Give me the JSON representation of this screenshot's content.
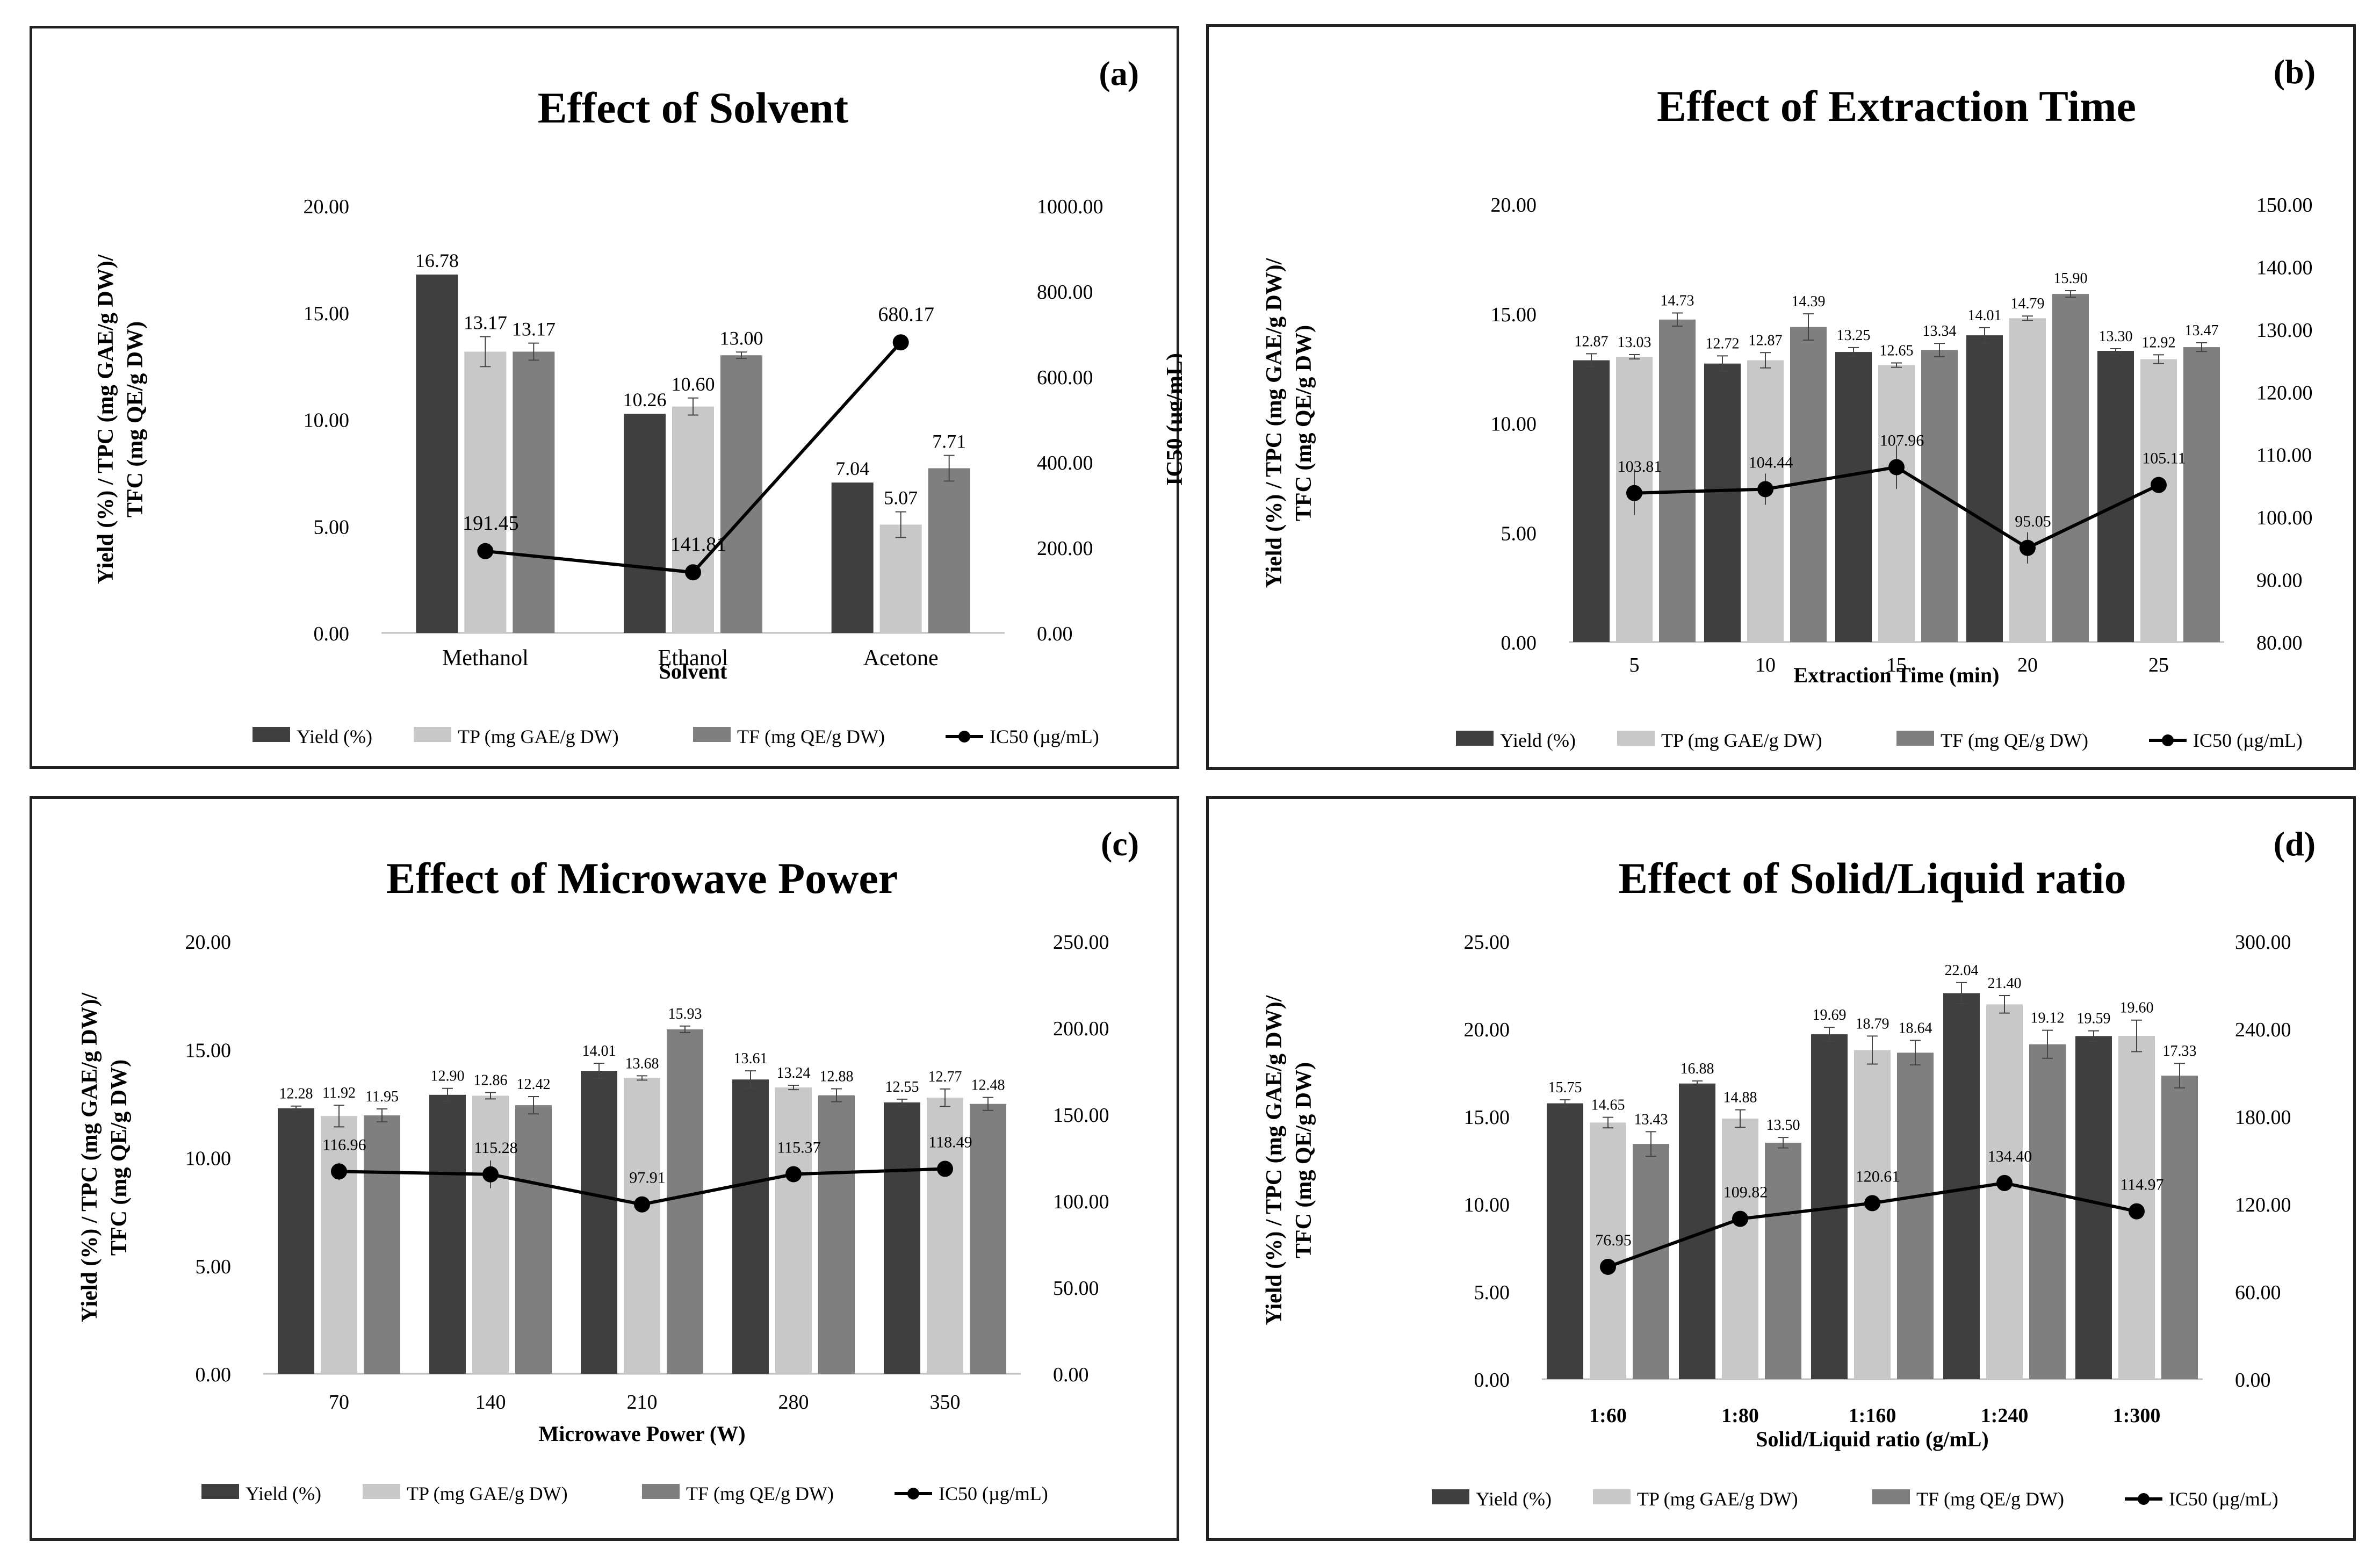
{
  "colors": {
    "yield": "#3f3f3f",
    "tp": "#c8c8c8",
    "tf": "#7f7f7f",
    "line": "#000000",
    "axis": "#bfbfbf"
  },
  "legend": {
    "yield": "Yield (%)",
    "tp": "TP (mg GAE/g DW)",
    "tf": "TF (mg QE/g DW)",
    "ic50": "IC50 (µg/mL)"
  },
  "y_label_left": [
    "Yield (%) / TPC (mg GAE/g DW)/",
    "TFC (mg QE/g DW)"
  ],
  "y_label_right": "IC50 (µg/mL)",
  "chart_data": [
    {
      "panel": "(a)",
      "type": "bar",
      "title": "Effect of Solvent",
      "xlabel": "Solvent",
      "categories": [
        "Methanol",
        "Ethanol",
        "Acetone"
      ],
      "ylim": [
        0,
        20
      ],
      "yticks": [
        "0.00",
        "5.00",
        "10.00",
        "15.00",
        "20.00"
      ],
      "y2lim": [
        0,
        1000
      ],
      "y2ticks": [
        "0.00",
        "200.00",
        "400.00",
        "600.00",
        "800.00",
        "1000.00"
      ],
      "series": [
        {
          "name": "Yield (%)",
          "values": [
            16.78,
            10.26,
            7.04
          ],
          "labels": [
            "16.78",
            "10.26",
            "7.04"
          ],
          "err": [
            0,
            0,
            0
          ]
        },
        {
          "name": "TP (mg GAE/g DW)",
          "values": [
            13.17,
            10.6,
            5.07
          ],
          "labels": [
            "13.17",
            "10.60",
            "5.07"
          ],
          "err": [
            0.7,
            0.4,
            0.6
          ]
        },
        {
          "name": "TF (mg QE/g DW)",
          "values": [
            13.17,
            13.0,
            7.71
          ],
          "labels": [
            "13.17",
            "13.00",
            "7.71"
          ],
          "err": [
            0.4,
            0.15,
            0.6
          ]
        }
      ],
      "line": {
        "name": "IC50 (µg/mL)",
        "values": [
          191.45,
          141.81,
          680.17
        ],
        "labels": [
          "191.45",
          "141.81",
          "680.17"
        ],
        "err": [
          0,
          0,
          0
        ]
      }
    },
    {
      "panel": "(b)",
      "type": "bar",
      "title": "Effect of Extraction Time",
      "xlabel": "Extraction Time (min)",
      "categories": [
        "5",
        "10",
        "15",
        "20",
        "25"
      ],
      "ylim": [
        0,
        20
      ],
      "yticks": [
        "0.00",
        "5.00",
        "10.00",
        "15.00",
        "20.00"
      ],
      "y2lim": [
        80,
        150
      ],
      "y2ticks": [
        "80.00",
        "90.00",
        "100.00",
        "110.00",
        "120.00",
        "130.00",
        "140.00",
        "150.00"
      ],
      "series": [
        {
          "name": "Yield (%)",
          "values": [
            12.87,
            12.72,
            13.25,
            14.01,
            13.3
          ],
          "labels": [
            "12.87",
            "12.72",
            "13.25",
            "14.01",
            "13.30"
          ],
          "err": [
            0.3,
            0.35,
            0.2,
            0.35,
            0.1
          ]
        },
        {
          "name": "TP (mg GAE/g DW)",
          "values": [
            13.03,
            12.87,
            12.65,
            14.79,
            12.92
          ],
          "labels": [
            "13.03",
            "12.87",
            "12.65",
            "14.79",
            "12.92"
          ],
          "err": [
            0.1,
            0.35,
            0.1,
            0.1,
            0.2
          ]
        },
        {
          "name": "TF (mg QE/g DW)",
          "values": [
            14.73,
            14.39,
            13.34,
            15.9,
            13.47
          ],
          "labels": [
            "14.73",
            "14.39",
            "13.34",
            "15.90",
            "13.47"
          ],
          "err": [
            0.3,
            0.6,
            0.3,
            0.15,
            0.2
          ]
        }
      ],
      "line": {
        "name": "IC50 (µg/mL)",
        "values": [
          103.81,
          104.44,
          107.96,
          95.05,
          105.11
        ],
        "labels": [
          "103.81",
          "104.44",
          "107.96",
          "95.05",
          "105.11"
        ],
        "err": [
          3.5,
          2.5,
          3.5,
          2.5,
          1.0
        ]
      }
    },
    {
      "panel": "(c)",
      "type": "bar",
      "title": "Effect of Microwave Power",
      "xlabel": "Microwave Power (W)",
      "categories": [
        "70",
        "140",
        "210",
        "280",
        "350"
      ],
      "ylim": [
        0,
        20
      ],
      "yticks": [
        "0.00",
        "5.00",
        "10.00",
        "15.00",
        "20.00"
      ],
      "y2lim": [
        0,
        250
      ],
      "y2ticks": [
        "0.00",
        "50.00",
        "100.00",
        "150.00",
        "200.00",
        "250.00"
      ],
      "series": [
        {
          "name": "Yield (%)",
          "values": [
            12.28,
            12.9,
            14.01,
            13.61,
            12.55
          ],
          "labels": [
            "12.28",
            "12.90",
            "14.01",
            "13.61",
            "12.55"
          ],
          "err": [
            0.1,
            0.3,
            0.35,
            0.4,
            0.15
          ]
        },
        {
          "name": "TP (mg GAE/g DW)",
          "values": [
            11.92,
            12.86,
            13.68,
            13.24,
            12.77
          ],
          "labels": [
            "11.92",
            "12.86",
            "13.68",
            "13.24",
            "12.77"
          ],
          "err": [
            0.5,
            0.15,
            0.1,
            0.1,
            0.4
          ]
        },
        {
          "name": "TF (mg QE/g DW)",
          "values": [
            11.95,
            12.42,
            15.93,
            12.88,
            12.48
          ],
          "labels": [
            "11.95",
            "12.42",
            "15.93",
            "12.88",
            "12.48"
          ],
          "err": [
            0.3,
            0.4,
            0.15,
            0.3,
            0.3
          ]
        }
      ],
      "line": {
        "name": "IC50 (µg/mL)",
        "values": [
          116.96,
          115.28,
          97.91,
          115.37,
          118.49
        ],
        "labels": [
          "116.96",
          "115.28",
          "97.91",
          "115.37",
          "118.49"
        ],
        "err": [
          5,
          8,
          3,
          3,
          2
        ]
      }
    },
    {
      "panel": "(d)",
      "type": "bar",
      "title": "Effect of Solid/Liquid ratio",
      "xlabel": "Solid/Liquid ratio (g/mL)",
      "categories": [
        "1:60",
        "1:80",
        "1:160",
        "1:240",
        "1:300"
      ],
      "ylim": [
        0,
        25
      ],
      "yticks": [
        "0.00",
        "5.00",
        "10.00",
        "15.00",
        "20.00",
        "25.00"
      ],
      "y2lim": [
        0,
        300
      ],
      "y2ticks": [
        "0.00",
        "60.00",
        "120.00",
        "180.00",
        "240.00",
        "300.00"
      ],
      "series": [
        {
          "name": "Yield (%)",
          "values": [
            15.75,
            16.88,
            19.69,
            22.04,
            19.59
          ],
          "labels": [
            "15.75",
            "16.88",
            "19.69",
            "22.04",
            "19.59"
          ],
          "err": [
            0.2,
            0.15,
            0.4,
            0.6,
            0.3
          ]
        },
        {
          "name": "TP (mg GAE/g DW)",
          "values": [
            14.65,
            14.88,
            18.79,
            21.4,
            19.6
          ],
          "labels": [
            "14.65",
            "14.88",
            "18.79",
            "21.40",
            "19.60"
          ],
          "err": [
            0.3,
            0.5,
            0.8,
            0.5,
            0.9
          ]
        },
        {
          "name": "TF (mg QE/g DW)",
          "values": [
            13.43,
            13.5,
            18.64,
            19.12,
            17.33
          ],
          "labels": [
            "13.43",
            "13.50",
            "18.64",
            "19.12",
            "17.33"
          ],
          "err": [
            0.7,
            0.3,
            0.7,
            0.8,
            0.7
          ]
        }
      ],
      "line": {
        "name": "IC50 (µg/mL)",
        "values": [
          76.95,
          109.82,
          120.61,
          134.4,
          114.97
        ],
        "labels": [
          "76.95",
          "109.82",
          "120.61",
          "134.40",
          "114.97"
        ],
        "err": [
          2,
          5,
          2,
          2,
          2
        ]
      }
    }
  ]
}
